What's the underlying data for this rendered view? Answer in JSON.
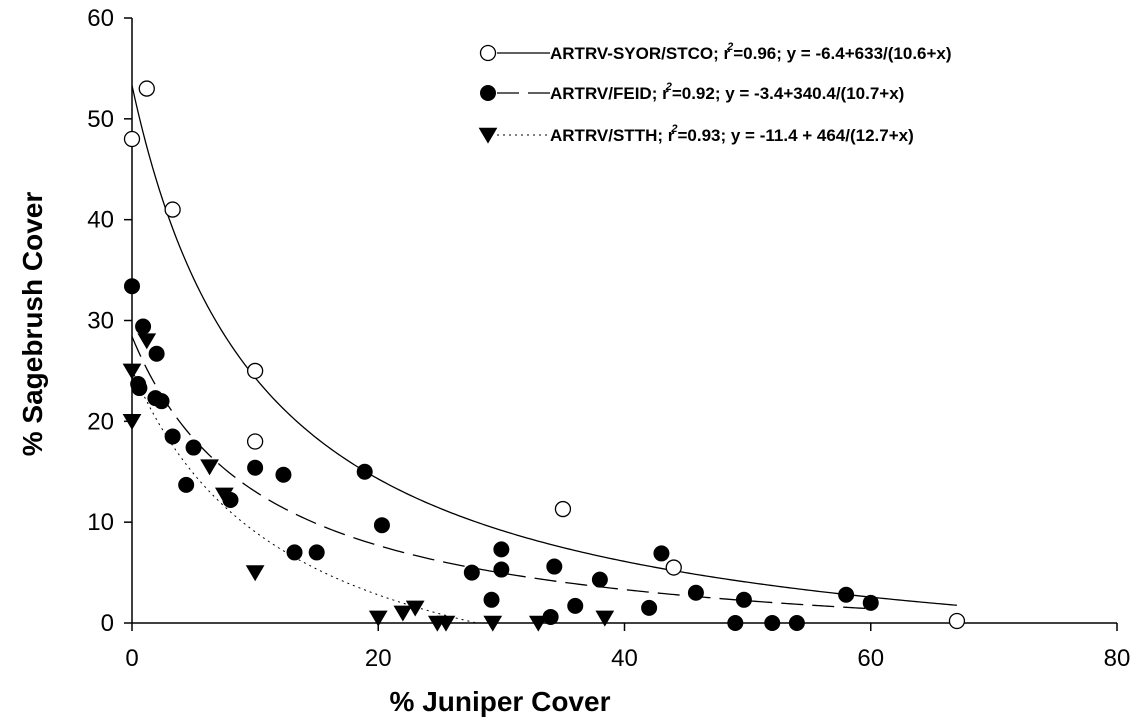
{
  "chart_data": {
    "type": "scatter",
    "xlabel": "% Juniper Cover",
    "ylabel": "% Sagebrush Cover",
    "xlim": [
      0,
      80
    ],
    "ylim": [
      0,
      60
    ],
    "x_ticks": [
      0,
      20,
      40,
      60,
      80
    ],
    "y_ticks": [
      0,
      10,
      20,
      30,
      40,
      50,
      60
    ],
    "x_tick_labels": [
      "0",
      "20",
      "40",
      "60",
      "80"
    ],
    "y_tick_labels": [
      "0",
      "10",
      "20",
      "30",
      "40",
      "50",
      "60"
    ],
    "grid": false,
    "legend_position": "top-right",
    "series": [
      {
        "name": "ARTRV-SYOR/STCO",
        "marker": "open-circle",
        "line_style": "solid",
        "r2_label": "r",
        "r2_value": "=0.96;",
        "equation": "y = -6.4+633/(10.6+x)",
        "fit": {
          "a": -6.4,
          "b": 633,
          "c": 10.6,
          "x_range": [
            0,
            67
          ]
        },
        "points": [
          {
            "x": 0,
            "y": 48
          },
          {
            "x": 1.2,
            "y": 53
          },
          {
            "x": 3.3,
            "y": 41
          },
          {
            "x": 10,
            "y": 25
          },
          {
            "x": 10,
            "y": 18
          },
          {
            "x": 35,
            "y": 11.3
          },
          {
            "x": 44,
            "y": 5.5
          },
          {
            "x": 67,
            "y": 0.2
          }
        ]
      },
      {
        "name": "ARTRV/FEID",
        "marker": "filled-circle",
        "line_style": "dashed",
        "r2_label": "r",
        "r2_value": "=0.92;",
        "equation": "y = -3.4+340.4/(10.7+x)",
        "fit": {
          "a": -3.4,
          "b": 340.4,
          "c": 10.7,
          "x_range": [
            0,
            60
          ]
        },
        "points": [
          {
            "x": 0,
            "y": 33.4
          },
          {
            "x": 0.9,
            "y": 29.4
          },
          {
            "x": 2,
            "y": 26.7
          },
          {
            "x": 0.5,
            "y": 23.7
          },
          {
            "x": 0.6,
            "y": 23.3
          },
          {
            "x": 1.9,
            "y": 22.3
          },
          {
            "x": 2.4,
            "y": 22
          },
          {
            "x": 3.3,
            "y": 18.5
          },
          {
            "x": 5,
            "y": 17.4
          },
          {
            "x": 4.4,
            "y": 13.7
          },
          {
            "x": 8,
            "y": 12.2
          },
          {
            "x": 10,
            "y": 15.4
          },
          {
            "x": 12.3,
            "y": 14.7
          },
          {
            "x": 13.2,
            "y": 7
          },
          {
            "x": 15,
            "y": 7
          },
          {
            "x": 18.9,
            "y": 15
          },
          {
            "x": 20.3,
            "y": 9.7
          },
          {
            "x": 27.6,
            "y": 5
          },
          {
            "x": 29.2,
            "y": 2.3
          },
          {
            "x": 30,
            "y": 7.3
          },
          {
            "x": 30,
            "y": 5.3
          },
          {
            "x": 34.3,
            "y": 5.6
          },
          {
            "x": 34,
            "y": 0.6
          },
          {
            "x": 36,
            "y": 1.7
          },
          {
            "x": 38,
            "y": 4.3
          },
          {
            "x": 42,
            "y": 1.5
          },
          {
            "x": 43,
            "y": 6.9
          },
          {
            "x": 45.8,
            "y": 3
          },
          {
            "x": 49,
            "y": 0
          },
          {
            "x": 49.7,
            "y": 2.3
          },
          {
            "x": 52,
            "y": 0
          },
          {
            "x": 54,
            "y": 0
          },
          {
            "x": 58,
            "y": 2.8
          },
          {
            "x": 60,
            "y": 2
          }
        ]
      },
      {
        "name": "ARTRV/STTH",
        "marker": "filled-triangle-down",
        "line_style": "dotted",
        "r2_label": "r",
        "r2_value": "=0.93;",
        "equation": "y = -11.4 + 464/(12.7+x)",
        "fit": {
          "a": -11.4,
          "b": 464,
          "c": 12.7,
          "x_range": [
            0,
            28
          ]
        },
        "points": [
          {
            "x": 0,
            "y": 25
          },
          {
            "x": 0,
            "y": 20
          },
          {
            "x": 1.2,
            "y": 28
          },
          {
            "x": 6.3,
            "y": 15.5
          },
          {
            "x": 7.5,
            "y": 12.7
          },
          {
            "x": 10,
            "y": 5
          },
          {
            "x": 20,
            "y": 0.5
          },
          {
            "x": 22,
            "y": 1
          },
          {
            "x": 23,
            "y": 1.5
          },
          {
            "x": 24.8,
            "y": 0
          },
          {
            "x": 25.5,
            "y": 0
          },
          {
            "x": 29.3,
            "y": 0
          },
          {
            "x": 33,
            "y": 0
          },
          {
            "x": 38.4,
            "y": 0.5
          }
        ]
      }
    ]
  }
}
